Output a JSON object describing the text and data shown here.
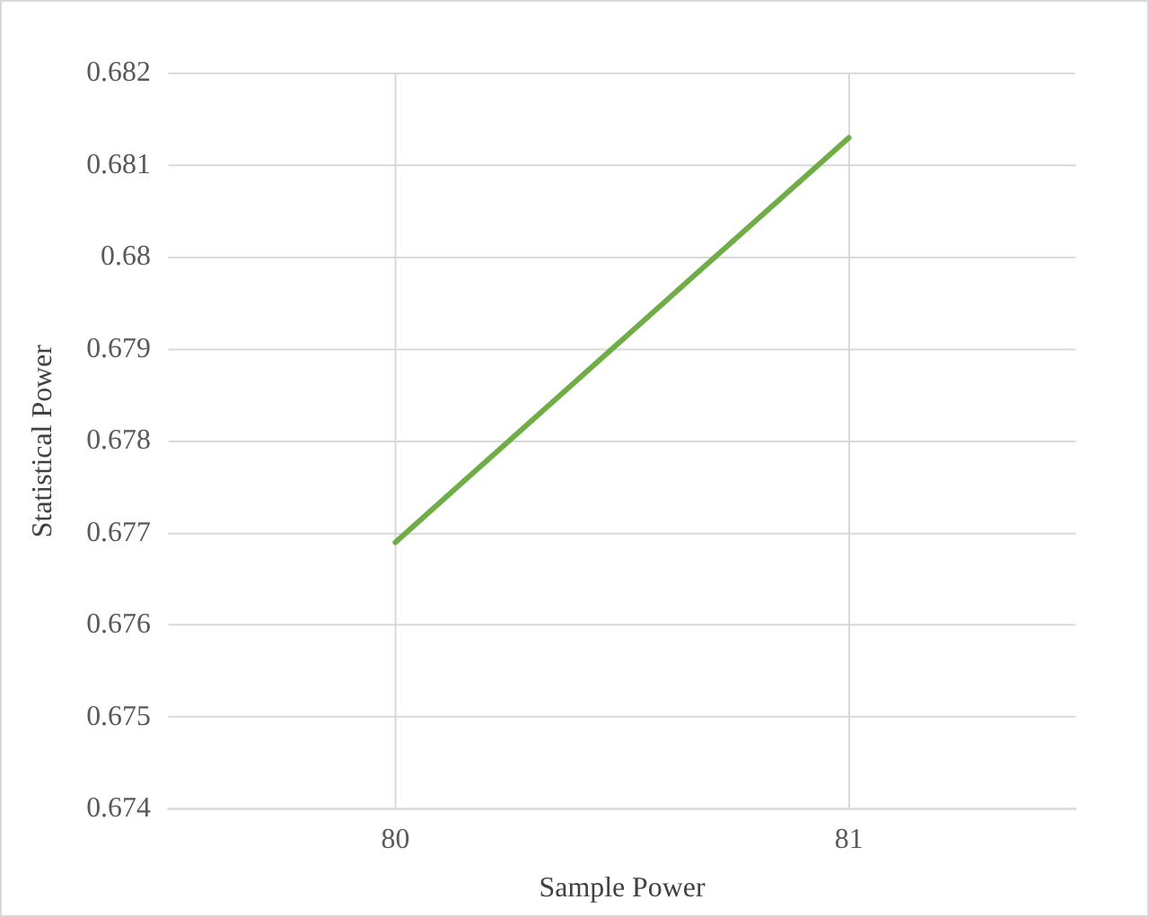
{
  "chart_data": {
    "type": "line",
    "xlabel": "Sample Power",
    "ylabel": "Statistical Power",
    "categories": [
      "80",
      "81"
    ],
    "series": [
      {
        "color": "#70ad47",
        "values": [
          0.6769,
          0.6813
        ]
      }
    ],
    "ylim": [
      0.674,
      0.682
    ],
    "yticks": [
      0.674,
      0.675,
      0.676,
      0.677,
      0.678,
      0.679,
      0.68,
      0.681,
      0.682
    ],
    "grid": true,
    "legend": false,
    "marker": "none",
    "line_style": "solid"
  }
}
